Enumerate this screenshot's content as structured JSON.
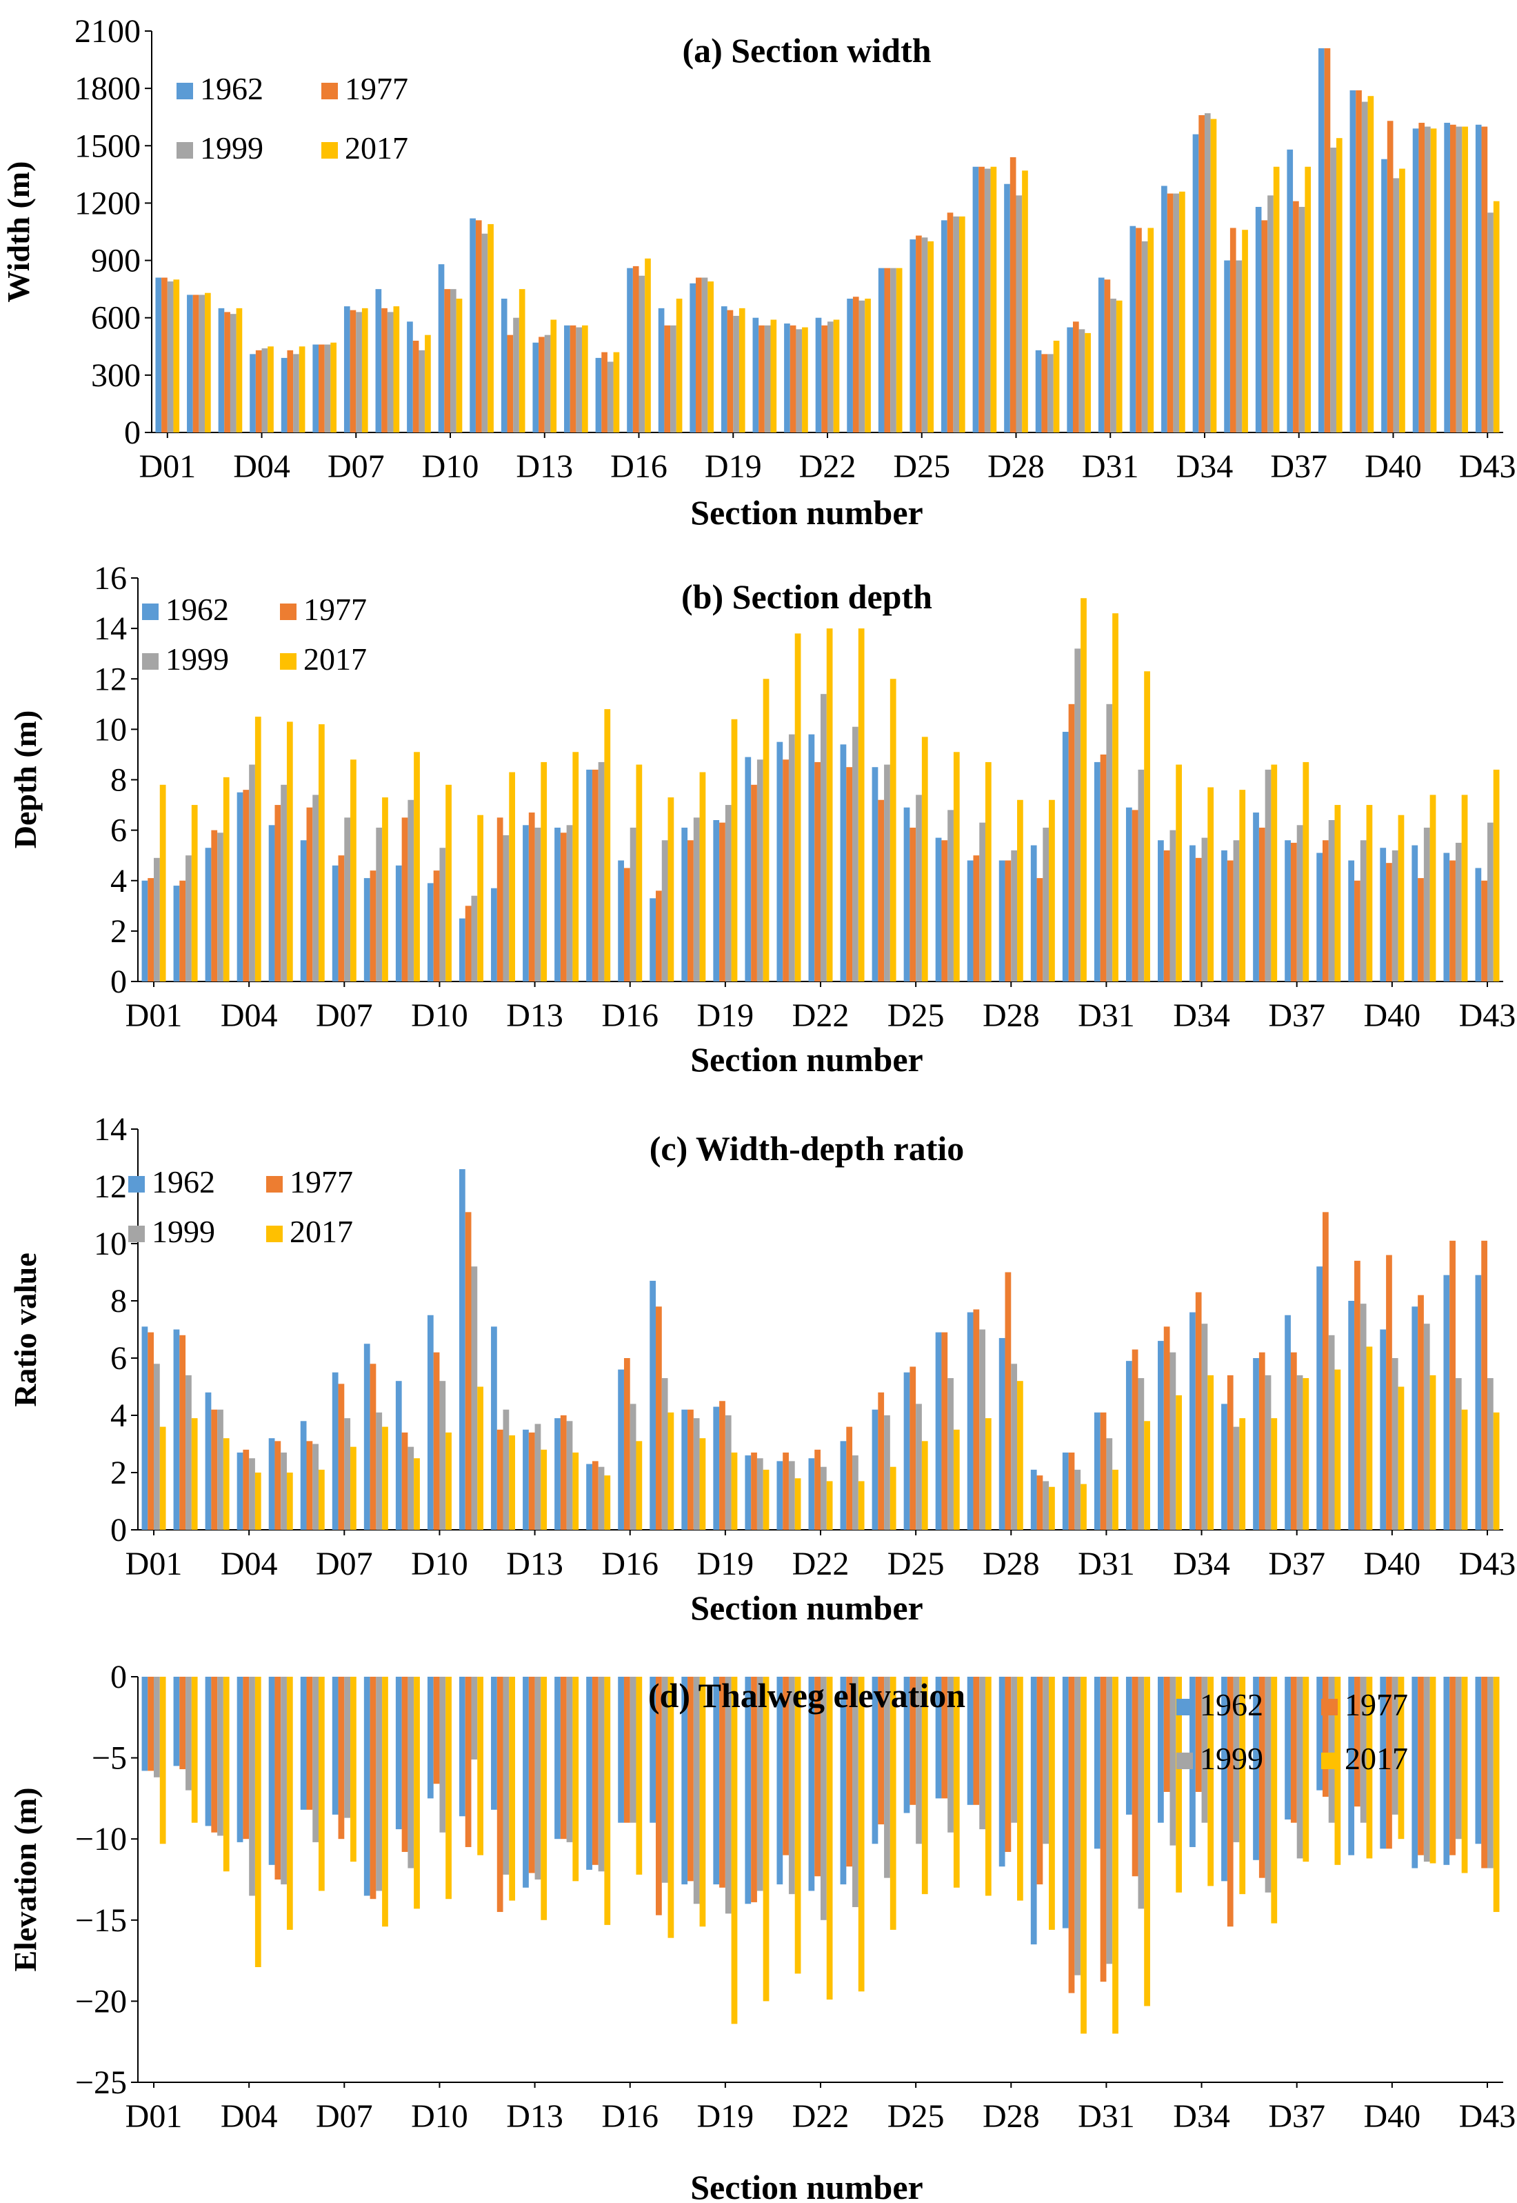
{
  "colors": {
    "1962": "#5B9BD5",
    "1977": "#ED7D31",
    "1999": "#A5A5A5",
    "2017": "#FFC000"
  },
  "chart_data": [
    {
      "type": "bar",
      "title": "(a) Section width",
      "xlabel": "Section number",
      "ylabel": "Width (m)",
      "ylim": [
        0,
        2100
      ],
      "yticks": [
        "0",
        "300",
        "600",
        "900",
        "1200",
        "1500",
        "1800",
        "2100"
      ],
      "xticklabels": [
        "D01",
        "D04",
        "D07",
        "D10",
        "D13",
        "D16",
        "D19",
        "D22",
        "D25",
        "D28",
        "D31",
        "D34",
        "D37",
        "D40",
        "D43"
      ],
      "categories": [
        "D01",
        "D02",
        "D03",
        "D04",
        "D05",
        "D06",
        "D07",
        "D08",
        "D09",
        "D10",
        "D11",
        "D12",
        "D13",
        "D14",
        "D15",
        "D16",
        "D17",
        "D18",
        "D19",
        "D20",
        "D21",
        "D22",
        "D23",
        "D24",
        "D25",
        "D26",
        "D27",
        "D28",
        "D29",
        "D30",
        "D31",
        "D32",
        "D33",
        "D34",
        "D35",
        "D36",
        "D37",
        "D38",
        "D39",
        "D40",
        "D41",
        "D42",
        "D43"
      ],
      "legend": {
        "position": "top-left",
        "layout": "2x2"
      },
      "series": [
        {
          "name": "1962",
          "values": [
            810,
            720,
            650,
            410,
            390,
            460,
            660,
            750,
            580,
            880,
            1120,
            700,
            470,
            560,
            390,
            860,
            650,
            780,
            660,
            600,
            570,
            600,
            700,
            860,
            1010,
            1110,
            1390,
            1300,
            430,
            550,
            810,
            1080,
            1290,
            1560,
            900,
            1180,
            1480,
            2010,
            1790,
            1430,
            1590,
            1620,
            1610
          ]
        },
        {
          "name": "1977",
          "values": [
            810,
            720,
            630,
            430,
            430,
            460,
            640,
            650,
            480,
            750,
            1110,
            510,
            500,
            560,
            420,
            870,
            560,
            810,
            640,
            560,
            560,
            560,
            710,
            860,
            1030,
            1150,
            1390,
            1440,
            410,
            580,
            800,
            1070,
            1250,
            1660,
            1070,
            1110,
            1210,
            2010,
            1790,
            1630,
            1620,
            1610,
            1600
          ]
        },
        {
          "name": "1999",
          "values": [
            790,
            720,
            620,
            440,
            410,
            460,
            630,
            630,
            430,
            750,
            1040,
            600,
            510,
            550,
            370,
            820,
            560,
            810,
            610,
            560,
            540,
            580,
            690,
            860,
            1020,
            1130,
            1380,
            1240,
            410,
            540,
            700,
            1000,
            1250,
            1670,
            900,
            1240,
            1180,
            1490,
            1730,
            1330,
            1600,
            1600,
            1150
          ]
        },
        {
          "name": "2017",
          "values": [
            800,
            730,
            650,
            450,
            450,
            470,
            650,
            660,
            510,
            700,
            1090,
            750,
            590,
            560,
            420,
            910,
            700,
            790,
            650,
            590,
            550,
            590,
            700,
            860,
            1000,
            1130,
            1390,
            1370,
            480,
            520,
            690,
            1070,
            1260,
            1640,
            1060,
            1390,
            1390,
            1540,
            1760,
            1380,
            1590,
            1600,
            1210
          ]
        }
      ]
    },
    {
      "type": "bar",
      "title": "(b) Section depth",
      "xlabel": "Section number",
      "ylabel": "Depth (m)",
      "ylim": [
        0,
        16
      ],
      "yticks": [
        "0",
        "2",
        "4",
        "6",
        "8",
        "10",
        "12",
        "14",
        "16"
      ],
      "xticklabels": [
        "D01",
        "D04",
        "D07",
        "D10",
        "D13",
        "D16",
        "D19",
        "D22",
        "D25",
        "D28",
        "D31",
        "D34",
        "D37",
        "D40",
        "D43"
      ],
      "categories": [
        "D01",
        "D02",
        "D03",
        "D04",
        "D05",
        "D06",
        "D07",
        "D08",
        "D09",
        "D10",
        "D11",
        "D12",
        "D13",
        "D14",
        "D15",
        "D16",
        "D17",
        "D18",
        "D19",
        "D20",
        "D21",
        "D22",
        "D23",
        "D24",
        "D25",
        "D26",
        "D27",
        "D28",
        "D29",
        "D30",
        "D31",
        "D32",
        "D33",
        "D34",
        "D35",
        "D36",
        "D37",
        "D38",
        "D39",
        "D40",
        "D41",
        "D42",
        "D43"
      ],
      "legend": {
        "position": "top-left",
        "layout": "2x2"
      },
      "series": [
        {
          "name": "1962",
          "values": [
            4.0,
            3.8,
            5.3,
            7.5,
            6.2,
            5.6,
            4.6,
            4.1,
            4.6,
            3.9,
            2.5,
            3.7,
            6.2,
            6.1,
            8.4,
            4.8,
            3.3,
            6.1,
            6.4,
            8.9,
            9.5,
            9.8,
            9.4,
            8.5,
            6.9,
            5.7,
            4.8,
            4.8,
            5.4,
            9.9,
            8.7,
            6.9,
            5.6,
            5.4,
            5.2,
            6.7,
            5.6,
            5.1,
            4.8,
            5.3,
            5.4,
            5.1,
            4.5
          ]
        },
        {
          "name": "1977",
          "values": [
            4.1,
            4.0,
            6.0,
            7.6,
            7.0,
            6.9,
            5.0,
            4.4,
            6.5,
            4.4,
            3.0,
            6.5,
            6.7,
            5.9,
            8.4,
            4.5,
            3.6,
            5.6,
            6.3,
            7.8,
            8.8,
            8.7,
            8.5,
            7.2,
            6.1,
            5.6,
            5.0,
            4.8,
            4.1,
            11.0,
            9.0,
            6.8,
            5.2,
            4.9,
            4.8,
            6.1,
            5.5,
            5.6,
            4.0,
            4.7,
            4.1,
            4.8,
            4.0
          ]
        },
        {
          "name": "1999",
          "values": [
            4.9,
            5.0,
            5.9,
            8.6,
            7.8,
            7.4,
            6.5,
            6.1,
            7.2,
            5.3,
            3.4,
            5.8,
            6.1,
            6.2,
            8.7,
            6.1,
            5.6,
            6.5,
            7.0,
            8.8,
            9.8,
            11.4,
            10.1,
            8.6,
            7.4,
            6.8,
            6.3,
            5.2,
            6.1,
            13.2,
            11.0,
            8.4,
            6.0,
            5.7,
            5.6,
            8.4,
            6.2,
            6.4,
            5.6,
            5.2,
            6.1,
            5.5,
            6.3
          ]
        },
        {
          "name": "2017",
          "values": [
            7.8,
            7.0,
            8.1,
            10.5,
            10.3,
            10.2,
            8.8,
            7.3,
            9.1,
            7.8,
            6.6,
            8.3,
            8.7,
            9.1,
            10.8,
            8.6,
            7.3,
            8.3,
            10.4,
            12.0,
            13.8,
            14.0,
            14.0,
            12.0,
            9.7,
            9.1,
            8.7,
            7.2,
            7.2,
            15.2,
            14.6,
            12.3,
            8.6,
            7.7,
            7.6,
            8.6,
            8.7,
            7.0,
            7.0,
            6.6,
            7.4,
            7.4,
            8.4
          ]
        }
      ]
    },
    {
      "type": "bar",
      "title": "(c) Width-depth ratio",
      "xlabel": "Section number",
      "ylabel": "Ratio value",
      "ylim": [
        0,
        14
      ],
      "yticks": [
        "0",
        "2",
        "4",
        "6",
        "8",
        "10",
        "12",
        "14"
      ],
      "xticklabels": [
        "D01",
        "D04",
        "D07",
        "D10",
        "D13",
        "D16",
        "D19",
        "D22",
        "D25",
        "D28",
        "D31",
        "D34",
        "D37",
        "D40",
        "D43"
      ],
      "categories": [
        "D01",
        "D02",
        "D03",
        "D04",
        "D05",
        "D06",
        "D07",
        "D08",
        "D09",
        "D10",
        "D11",
        "D12",
        "D13",
        "D14",
        "D15",
        "D16",
        "D17",
        "D18",
        "D19",
        "D20",
        "D21",
        "D22",
        "D23",
        "D24",
        "D25",
        "D26",
        "D27",
        "D28",
        "D29",
        "D30",
        "D31",
        "D32",
        "D33",
        "D34",
        "D35",
        "D36",
        "D37",
        "D38",
        "D39",
        "D40",
        "D41",
        "D42",
        "D43"
      ],
      "legend": {
        "position": "top-left",
        "layout": "2x2"
      },
      "series": [
        {
          "name": "1962",
          "values": [
            7.1,
            7.0,
            4.8,
            2.7,
            3.2,
            3.8,
            5.5,
            6.5,
            5.2,
            7.5,
            12.6,
            7.1,
            3.5,
            3.9,
            2.3,
            5.6,
            8.7,
            4.2,
            4.3,
            2.6,
            2.4,
            2.5,
            3.1,
            4.2,
            5.5,
            6.9,
            7.6,
            6.7,
            2.1,
            2.7,
            4.1,
            5.9,
            6.6,
            7.6,
            4.4,
            6.0,
            7.5,
            9.2,
            8.0,
            7.0,
            7.8,
            8.9,
            8.9
          ]
        },
        {
          "name": "1977",
          "values": [
            6.9,
            6.8,
            4.2,
            2.8,
            3.1,
            3.1,
            5.1,
            5.8,
            3.4,
            6.2,
            11.1,
            3.5,
            3.4,
            4.0,
            2.4,
            6.0,
            7.8,
            4.2,
            4.5,
            2.7,
            2.7,
            2.8,
            3.6,
            4.8,
            5.7,
            6.9,
            7.7,
            9.0,
            1.9,
            2.7,
            4.1,
            6.3,
            7.1,
            8.3,
            5.4,
            6.2,
            6.2,
            11.1,
            9.4,
            9.6,
            8.2,
            10.1,
            10.1
          ]
        },
        {
          "name": "1999",
          "values": [
            5.8,
            5.4,
            4.2,
            2.5,
            2.7,
            3.0,
            3.9,
            4.1,
            2.9,
            5.2,
            9.2,
            4.2,
            3.7,
            3.8,
            2.2,
            4.4,
            5.3,
            3.9,
            4.0,
            2.5,
            2.4,
            2.2,
            2.6,
            4.0,
            4.4,
            5.3,
            7.0,
            5.8,
            1.7,
            2.1,
            3.2,
            5.3,
            6.2,
            7.2,
            3.6,
            5.4,
            5.4,
            6.8,
            7.9,
            6.0,
            7.2,
            5.3,
            5.3
          ]
        },
        {
          "name": "2017",
          "values": [
            3.6,
            3.9,
            3.2,
            2.0,
            2.0,
            2.1,
            2.9,
            3.6,
            2.5,
            3.4,
            5.0,
            3.3,
            2.8,
            2.7,
            1.9,
            3.1,
            4.1,
            3.2,
            2.7,
            2.1,
            1.8,
            1.7,
            1.7,
            2.2,
            3.1,
            3.5,
            3.9,
            5.2,
            1.5,
            1.6,
            2.1,
            3.8,
            4.7,
            5.4,
            3.9,
            3.9,
            5.3,
            5.6,
            6.4,
            5.0,
            5.4,
            4.2,
            4.1
          ]
        }
      ]
    },
    {
      "type": "bar",
      "title": "(d) Thalweg elevation",
      "xlabel": "Section number",
      "ylabel": "Elevation (m)",
      "ylim": [
        -25,
        0
      ],
      "yticks": [
        "−25",
        "−20",
        "−15",
        "−10",
        "−5",
        "0"
      ],
      "xticklabels": [
        "D01",
        "D04",
        "D07",
        "D10",
        "D13",
        "D16",
        "D19",
        "D22",
        "D25",
        "D28",
        "D31",
        "D34",
        "D37",
        "D40",
        "D43"
      ],
      "categories": [
        "D01",
        "D02",
        "D03",
        "D04",
        "D05",
        "D06",
        "D07",
        "D08",
        "D09",
        "D10",
        "D11",
        "D12",
        "D13",
        "D14",
        "D15",
        "D16",
        "D17",
        "D18",
        "D19",
        "D20",
        "D21",
        "D22",
        "D23",
        "D24",
        "D25",
        "D26",
        "D27",
        "D28",
        "D29",
        "D30",
        "D31",
        "D32",
        "D33",
        "D34",
        "D35",
        "D36",
        "D37",
        "D38",
        "D39",
        "D40",
        "D41",
        "D42",
        "D43"
      ],
      "legend": {
        "position": "top-right",
        "layout": "2x2"
      },
      "series": [
        {
          "name": "1962",
          "values": [
            -5.8,
            -5.5,
            -9.2,
            -10.2,
            -11.6,
            -8.2,
            -8.5,
            -13.5,
            -9.4,
            -7.5,
            -8.6,
            -8.2,
            -13.0,
            -10.0,
            -11.9,
            -9.0,
            -9.0,
            -12.8,
            -12.8,
            -14.0,
            -12.8,
            -13.2,
            -12.8,
            -10.3,
            -8.4,
            -7.5,
            -7.9,
            -11.7,
            -16.5,
            -15.5,
            -10.6,
            -8.5,
            -9.0,
            -10.5,
            -12.6,
            -11.3,
            -8.8,
            -7.0,
            -11.0,
            -10.6,
            -11.8,
            -11.6,
            -10.3
          ]
        },
        {
          "name": "1977",
          "values": [
            -5.8,
            -5.7,
            -9.6,
            -10.0,
            -12.5,
            -8.2,
            -10.0,
            -13.7,
            -10.8,
            -6.6,
            -10.5,
            -14.5,
            -12.1,
            -10.0,
            -11.6,
            -9.0,
            -14.7,
            -12.6,
            -13.0,
            -13.9,
            -11.0,
            -12.3,
            -11.7,
            -9.1,
            -7.9,
            -7.5,
            -7.9,
            -10.8,
            -12.8,
            -19.5,
            -18.8,
            -12.3,
            -7.1,
            -7.1,
            -15.4,
            -12.4,
            -9.0,
            -7.4,
            -8.0,
            -10.6,
            -11.0,
            -11.0,
            -11.8
          ]
        },
        {
          "name": "1999",
          "values": [
            -6.2,
            -7.0,
            -9.8,
            -13.5,
            -12.8,
            -10.2,
            -8.7,
            -13.2,
            -11.8,
            -9.6,
            -5.1,
            -12.2,
            -12.5,
            -10.2,
            -12.0,
            -9.0,
            -12.7,
            -14.0,
            -14.6,
            -13.2,
            -13.4,
            -15.0,
            -14.2,
            -12.4,
            -10.3,
            -9.6,
            -9.4,
            -9.0,
            -10.3,
            -18.4,
            -17.7,
            -14.3,
            -10.4,
            -9.0,
            -10.2,
            -13.3,
            -11.2,
            -9.0,
            -9.0,
            -8.5,
            -11.4,
            -10.0,
            -11.8
          ]
        },
        {
          "name": "2017",
          "values": [
            -10.3,
            -9.0,
            -12.0,
            -17.9,
            -15.6,
            -13.2,
            -11.4,
            -15.4,
            -14.3,
            -13.7,
            -11.0,
            -13.8,
            -15.0,
            -12.6,
            -15.3,
            -12.2,
            -16.1,
            -15.4,
            -21.4,
            -20.0,
            -18.3,
            -19.9,
            -19.4,
            -15.6,
            -13.4,
            -13.0,
            -13.5,
            -13.8,
            -15.6,
            -22.0,
            -22.0,
            -20.3,
            -13.3,
            -12.9,
            -13.4,
            -15.2,
            -11.4,
            -11.6,
            -11.2,
            -10.0,
            -11.5,
            -12.1,
            -14.5
          ]
        }
      ]
    }
  ]
}
